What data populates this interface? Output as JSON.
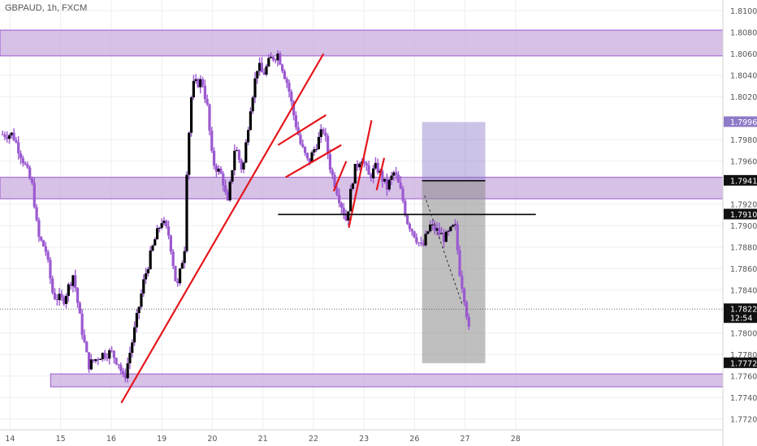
{
  "symbol_title": "GBPAUD, 1h, FXCM",
  "colors": {
    "candle_body": "#000000",
    "candle_wick": "#9b59d0",
    "zone_fill": "#c9acdf",
    "zone_border": "#9b59d0",
    "trendline": "#e5161b",
    "stop_box": "#8e7bc7",
    "target_box": "#8b8b8b",
    "axis_text": "#555555",
    "grid": "#eeeeee"
  },
  "chart_data": {
    "type": "candlestick",
    "title": "GBPAUD, 1h, FXCM",
    "ylim": [
      1.771,
      1.811
    ],
    "xlim": [
      13.8,
      28.1
    ],
    "y_ticks": [
      "1.81000",
      "1.80800",
      "1.80600",
      "1.80400",
      "1.80200",
      "1.79800",
      "1.79600",
      "1.79200",
      "1.79000",
      "1.78800",
      "1.78600",
      "1.78400",
      "1.78000",
      "1.77800",
      "1.77600",
      "1.77400",
      "1.77200"
    ],
    "y_tick_values": [
      1.81,
      1.808,
      1.806,
      1.804,
      1.802,
      1.798,
      1.796,
      1.792,
      1.79,
      1.788,
      1.786,
      1.784,
      1.78,
      1.778,
      1.776,
      1.774,
      1.772
    ],
    "x_ticks": [
      "14",
      "15",
      "16",
      "19",
      "20",
      "21",
      "22",
      "23",
      "26",
      "27",
      "28"
    ],
    "x_tick_positions": [
      14,
      15,
      16,
      17,
      18,
      19,
      20,
      21,
      22,
      23,
      24
    ],
    "price_labels": [
      {
        "text": "1.79964",
        "value": 1.79964,
        "style": "purple"
      },
      {
        "text": "1.79418",
        "value": 1.79418,
        "style": "dark"
      },
      {
        "text": "1.79104",
        "value": 1.79104,
        "style": "dark"
      },
      {
        "text": "1.78223",
        "value": 1.78223,
        "style": "dark",
        "sub": "12:54"
      },
      {
        "text": "1.77720",
        "value": 1.7772,
        "style": "dark"
      }
    ],
    "zones": [
      {
        "top": 1.8082,
        "bottom": 1.8058
      },
      {
        "top": 1.7945,
        "bottom": 1.7925
      },
      {
        "top": 1.7762,
        "bottom": 1.775,
        "x0": 14.8
      }
    ],
    "position": {
      "x0": 22.15,
      "x1": 23.4,
      "stop": 1.79964,
      "entry": 1.79418,
      "target": 1.7772
    },
    "hlines": [
      {
        "value": 1.79418,
        "x0": 22.15,
        "x1": 23.4
      },
      {
        "value": 1.79104,
        "x0": 19.3,
        "x1": 24.4
      }
    ],
    "trendlines": [
      {
        "x0": 16.2,
        "y0": 1.7735,
        "x1": 20.2,
        "y1": 1.806
      },
      {
        "x0": 19.3,
        "y0": 1.7975,
        "x1": 20.25,
        "y1": 1.8003
      },
      {
        "x0": 19.45,
        "y0": 1.7945,
        "x1": 20.55,
        "y1": 1.7975
      },
      {
        "x0": 20.4,
        "y0": 1.7932,
        "x1": 20.65,
        "y1": 1.796
      },
      {
        "x0": 20.7,
        "y0": 1.7898,
        "x1": 21.15,
        "y1": 1.7998
      },
      {
        "x0": 21.25,
        "y0": 1.7933,
        "x1": 21.4,
        "y1": 1.7963
      }
    ],
    "projection": {
      "x0": 22.2,
      "y0": 1.7928,
      "x1": 22.95,
      "y1": 1.7826
    },
    "candles": []
  }
}
